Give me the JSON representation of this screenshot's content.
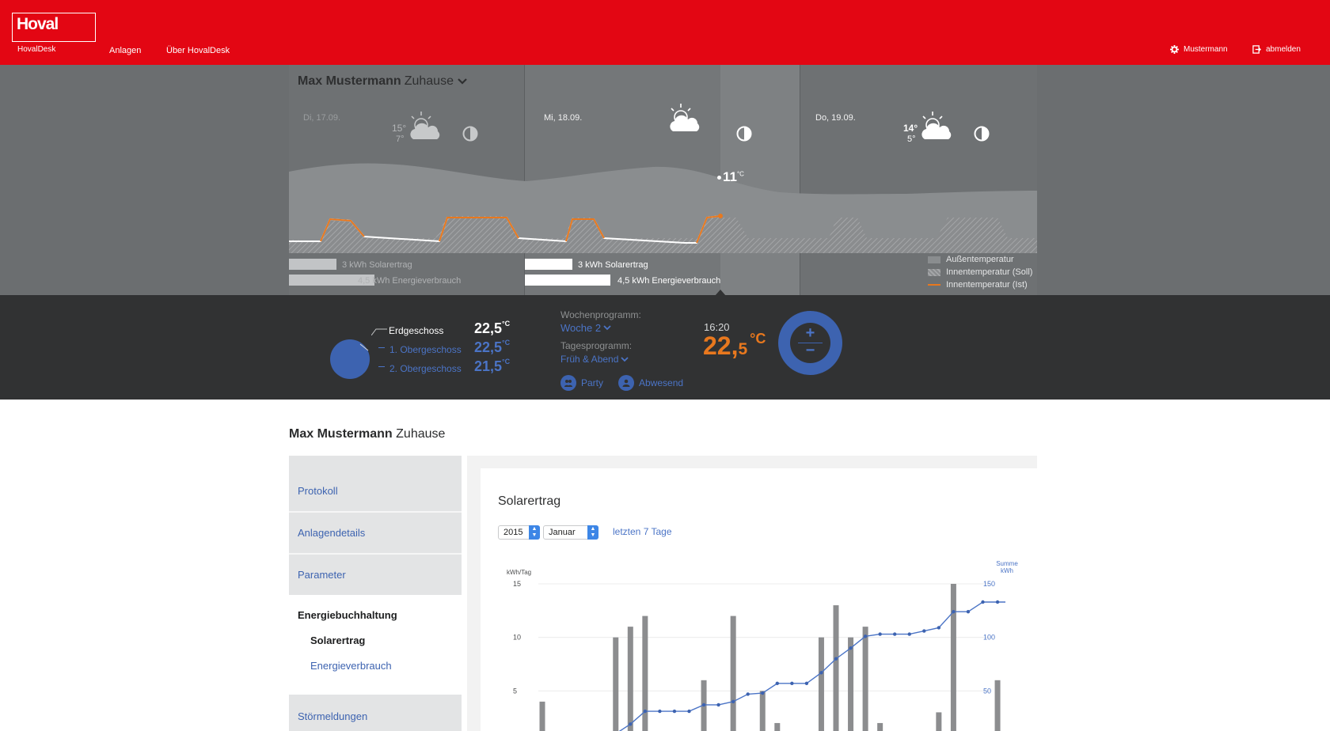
{
  "header": {
    "brand": "Hoval",
    "brand_sub": "HovalDesk",
    "nav": [
      "Anlagen",
      "Über HovalDesk"
    ],
    "user": "Mustermann",
    "logout": "abmelden",
    "brand_color": "#e30613"
  },
  "house": {
    "owner": "Max Mustermann",
    "place": "Zuhause"
  },
  "forecast": {
    "days": [
      {
        "label": "Di, 17.09.",
        "high": "15°",
        "low": "7°",
        "weather": "partly-cloudy-icon",
        "night": "moon-phase-icon",
        "solar": "3 kWh Solarertrag",
        "energy": "4,5 kWh Energieverbrauch",
        "solar_fraction": 0.25,
        "energy_fraction": 0.45
      },
      {
        "label": "Mi, 18.09.",
        "high": "",
        "low": "",
        "weather": "partly-cloudy-icon",
        "night": "moon-phase-icon",
        "solar": "3 kWh Solarertrag",
        "energy": "4,5 kWh Energieverbrauch",
        "solar_fraction": 0.25,
        "energy_fraction": 0.45
      },
      {
        "label": "Do, 19.09.",
        "high": "14°",
        "low": "5°",
        "weather": "partly-cloudy-icon",
        "night": "moon-phase-icon"
      }
    ],
    "current_outdoor": "11",
    "current_unit": "°C",
    "legend": [
      "Außentemperatur",
      "Innentemperatur (Soll)",
      "Innentemperatur (Ist)"
    ],
    "accent": "#e8781e"
  },
  "control": {
    "floors": [
      {
        "name": "Erdgeschoss",
        "value": "22,5",
        "unit": "°C"
      },
      {
        "name": "1. Obergeschoss",
        "value": "22,5",
        "unit": "°C"
      },
      {
        "name": "2. Obergeschoss",
        "value": "21,5",
        "unit": "°C"
      }
    ],
    "week_program_label": "Wochenprogramm:",
    "week_program_value": "Woche 2",
    "day_program_label": "Tagesprogramm:",
    "day_program_value": "Früh & Abend",
    "modes": [
      "Party",
      "Abwesend"
    ],
    "time": "16:20",
    "setpoint_int": "22,",
    "setpoint_dec": "5",
    "setpoint_unit": "°C",
    "plus": "+",
    "minus": "−",
    "blue": "#3d63b0"
  },
  "lower": {
    "title_owner": "Max Mustermann",
    "title_place": "Zuhause",
    "sidebar": {
      "items": [
        "Protokoll",
        "Anlagendetails",
        "Parameter"
      ],
      "active_group": "Energiebuchhaltung",
      "sub_items": [
        "Solarertrag",
        "Energieverbrauch"
      ],
      "last": "Störmeldungen"
    },
    "panel_title": "Solarertrag",
    "year": "2015",
    "month": "Januar",
    "range_link": "letzten 7 Tage"
  },
  "chart_data": {
    "type": "bar",
    "title": "",
    "ylabel": "kWh/Tag",
    "y2label": "Summe kWh",
    "ylim": [
      0,
      15
    ],
    "y2lim": [
      0,
      150
    ],
    "yticks": [
      5,
      10,
      15
    ],
    "y2ticks": [
      50,
      100,
      150
    ],
    "series": [
      {
        "type": "bar",
        "values": [
          4,
          0,
          0,
          0,
          0,
          10,
          11,
          12,
          0,
          0,
          0,
          6,
          0,
          12,
          0,
          5,
          2,
          0,
          0,
          10,
          13,
          10,
          11,
          2,
          0,
          0,
          0,
          3,
          15,
          0,
          0,
          6,
          0,
          0,
          5
        ]
      },
      {
        "type": "line",
        "values": [
          0,
          0,
          0,
          0,
          0,
          10,
          19,
          31,
          31,
          31,
          31,
          37,
          37,
          40,
          47,
          48,
          57,
          57,
          57,
          67,
          80,
          90,
          101,
          103,
          103,
          103,
          106,
          109,
          124,
          124,
          133,
          133,
          133,
          133,
          138
        ]
      }
    ]
  }
}
